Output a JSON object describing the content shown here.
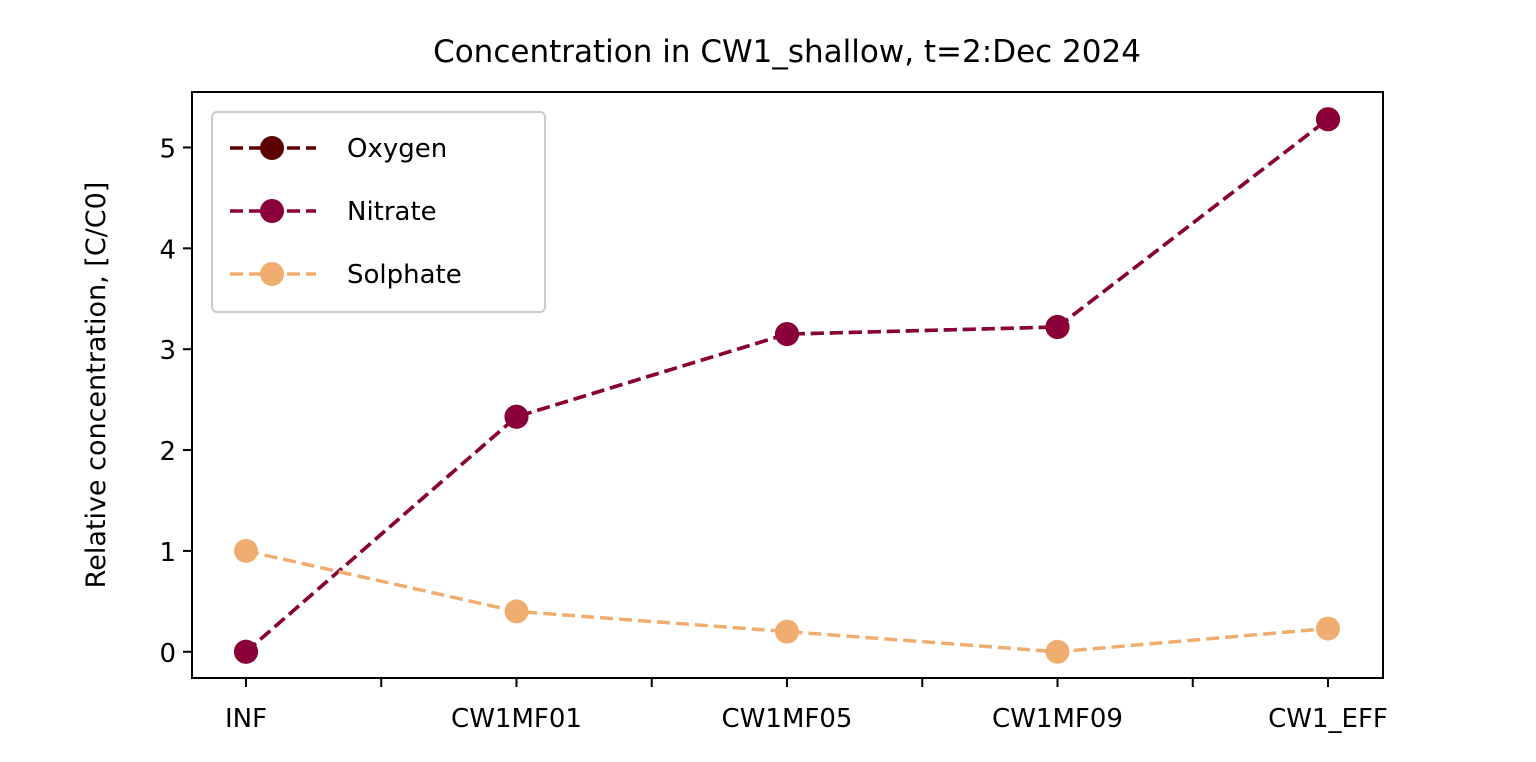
{
  "chart_data": {
    "type": "line",
    "title": "Concentration in CW1_shallow, t=2:Dec 2024",
    "xlabel": "",
    "ylabel": "Relative concentration, [C/C0]",
    "categories": [
      "INF",
      "CW1MF01",
      "CW1MF05",
      "CW1MF09",
      "CW1_EFF"
    ],
    "ylim": [
      -0.26,
      5.55
    ],
    "yticks": [
      0,
      1,
      2,
      3,
      4,
      5
    ],
    "grid": false,
    "legend_position": "upper-left",
    "line_style": "dashed",
    "marker": "circle",
    "series": [
      {
        "name": "Oxygen",
        "color": "#5c0000",
        "values": [
          0,
          2.33,
          3.15,
          3.22,
          5.28
        ]
      },
      {
        "name": "Nitrate",
        "color": "#8b0038",
        "values": [
          0,
          2.33,
          3.15,
          3.22,
          5.28
        ]
      },
      {
        "name": "Solphate",
        "color": "#f0ad70",
        "values": [
          1.0,
          0.4,
          0.2,
          0.0,
          0.23
        ]
      }
    ]
  }
}
